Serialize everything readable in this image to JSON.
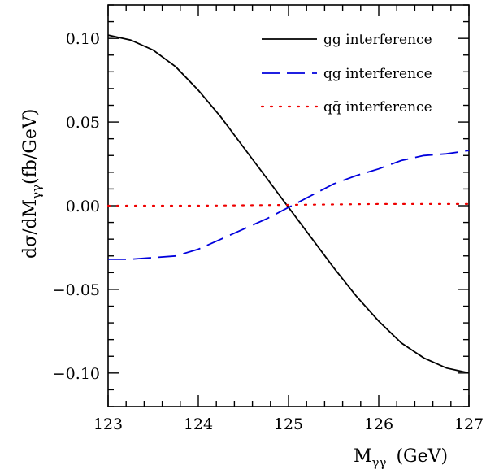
{
  "chart_data": {
    "type": "line",
    "xlabel": "M_{γγ} (GeV)",
    "xlabel_main": "M",
    "xlabel_sub": "γγ",
    "xlabel_unit": "(GeV)",
    "ylabel_main": "dσ/dM",
    "ylabel_sub": "γγ",
    "ylabel_unit": "(fb/GeV)",
    "xlim": [
      123,
      127
    ],
    "ylim": [
      -0.12,
      0.12
    ],
    "xticks": [
      123,
      124,
      125,
      126,
      127
    ],
    "xtick_labels": [
      "123",
      "124",
      "125",
      "126",
      "127"
    ],
    "yticks": [
      -0.1,
      -0.05,
      0.0,
      0.05,
      0.1
    ],
    "ytick_labels": [
      "−0.10",
      "−0.05",
      "0.00",
      "0.05",
      "0.10"
    ],
    "legend_position": "top-right",
    "grid": false,
    "series": [
      {
        "name": "gg interference",
        "color": "#000000",
        "style": "solid",
        "x": [
          123.0,
          123.25,
          123.5,
          123.75,
          124.0,
          124.25,
          124.5,
          124.75,
          125.0,
          125.25,
          125.5,
          125.75,
          126.0,
          126.25,
          126.5,
          126.75,
          127.0
        ],
        "y": [
          0.102,
          0.099,
          0.093,
          0.083,
          0.069,
          0.053,
          0.035,
          0.017,
          -0.001,
          -0.019,
          -0.037,
          -0.054,
          -0.069,
          -0.082,
          -0.091,
          -0.097,
          -0.1
        ]
      },
      {
        "name": "qg interference",
        "color": "#0000dd",
        "style": "dashed",
        "x": [
          123.0,
          123.25,
          123.5,
          123.75,
          124.0,
          124.25,
          124.5,
          124.75,
          125.0,
          125.25,
          125.5,
          125.75,
          126.0,
          126.25,
          126.5,
          126.75,
          127.0
        ],
        "y": [
          -0.032,
          -0.032,
          -0.031,
          -0.03,
          -0.026,
          -0.02,
          -0.014,
          -0.008,
          -0.001,
          0.006,
          0.013,
          0.018,
          0.022,
          0.027,
          0.03,
          0.031,
          0.033
        ]
      },
      {
        "name": "qq̄ interference",
        "color": "#ee0000",
        "style": "dotted",
        "x": [
          123.0,
          124.0,
          125.0,
          126.0,
          127.0
        ],
        "y": [
          0.0,
          0.0,
          0.0005,
          0.001,
          0.001
        ]
      }
    ]
  }
}
